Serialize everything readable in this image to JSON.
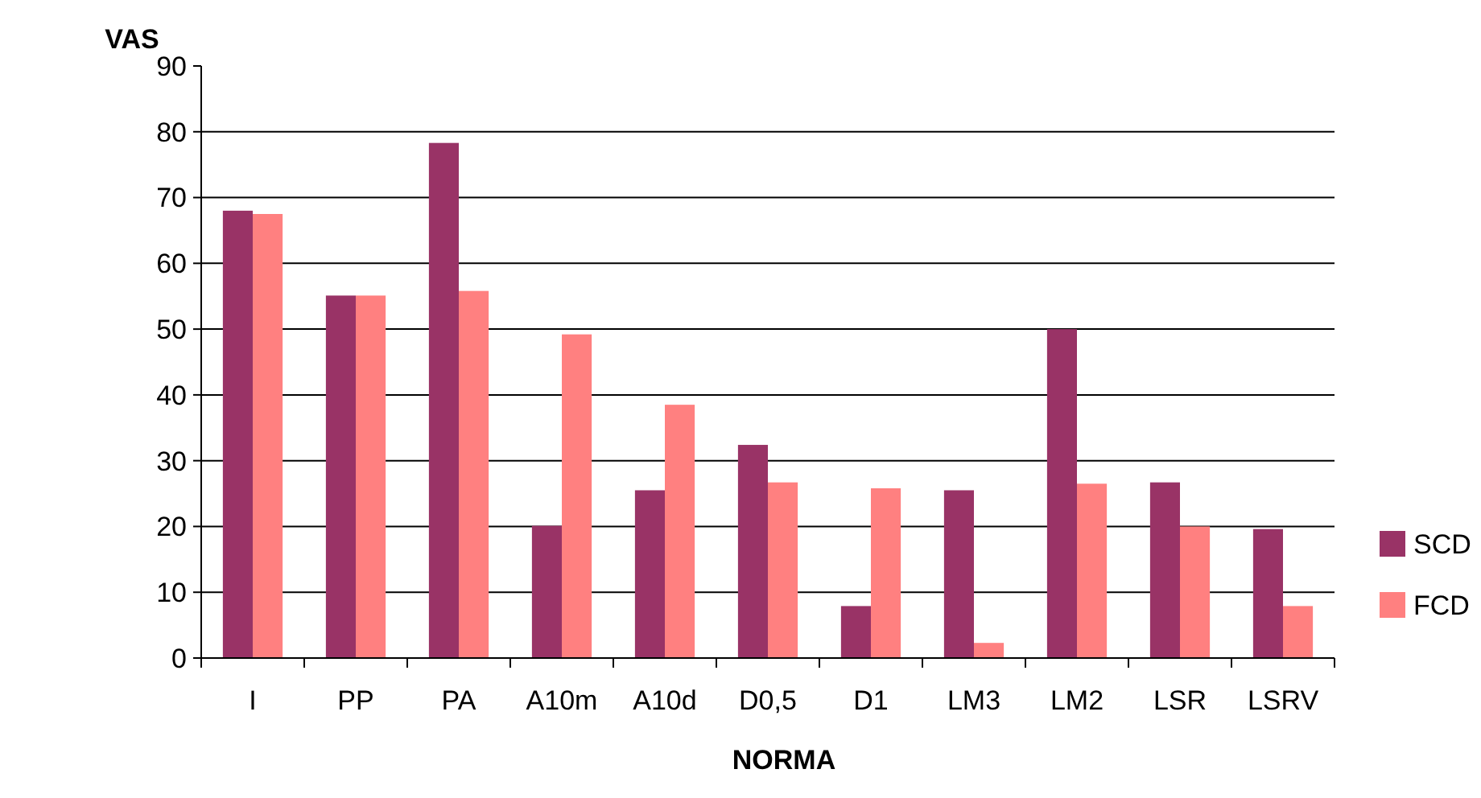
{
  "chart_data": {
    "type": "bar",
    "xlabel": "NORMA",
    "ylabel": "VAS",
    "categories": [
      "I",
      "PP",
      "PA",
      "A10m",
      "A10d",
      "D0,5",
      "D1",
      "LM3",
      "LM2",
      "LSR",
      "LSRV"
    ],
    "series": [
      {
        "name": "SCD",
        "color": "#993366",
        "values": [
          68,
          55.1,
          78.3,
          20.1,
          25.5,
          32.4,
          7.9,
          25.5,
          50,
          26.7,
          19.6
        ]
      },
      {
        "name": "FCD",
        "color": "#ff8080",
        "values": [
          67.5,
          55.1,
          55.8,
          49.2,
          38.5,
          26.7,
          25.8,
          2.3,
          26.5,
          20,
          7.9
        ]
      }
    ],
    "ylim": [
      0,
      90
    ],
    "yticks": [
      0,
      10,
      20,
      30,
      40,
      50,
      60,
      70,
      80,
      90
    ],
    "grid": "y",
    "legend": "right"
  }
}
